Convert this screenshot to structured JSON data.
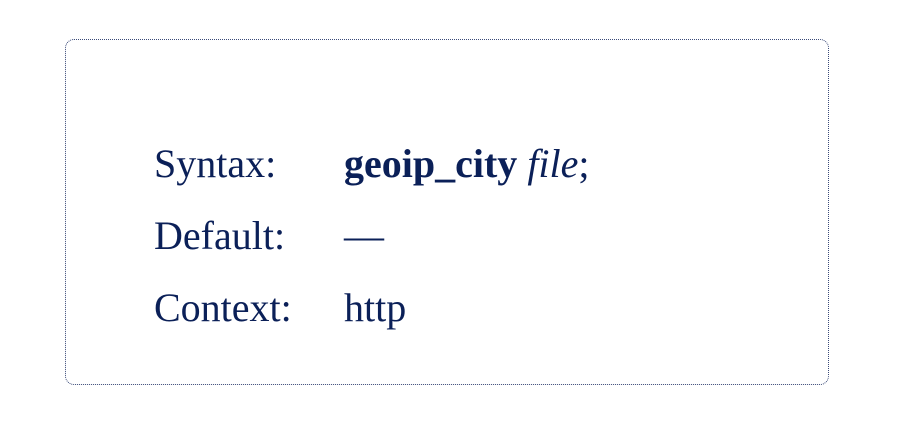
{
  "directive": {
    "syntax_label": "Syntax:",
    "syntax_keyword": "geoip_city",
    "syntax_argument": "file",
    "syntax_terminator": ";",
    "default_label": "Default:",
    "default_value": "—",
    "context_label": "Context:",
    "context_value": "http"
  },
  "colors": {
    "text": "#0b2058",
    "border": "#3a4a78",
    "background": "#ffffff"
  }
}
